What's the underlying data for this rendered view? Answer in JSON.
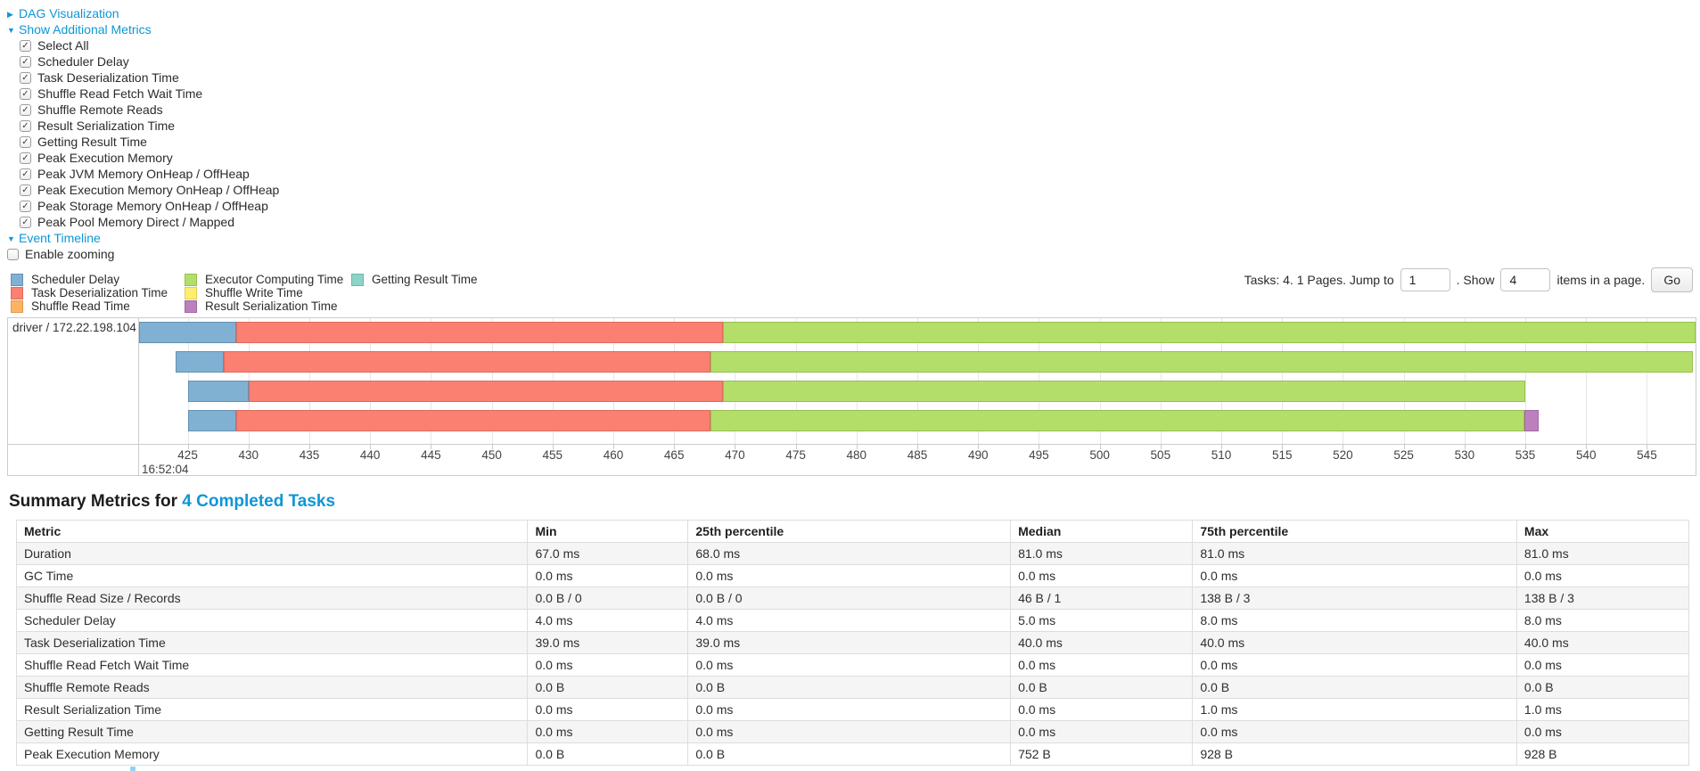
{
  "colors": {
    "link": "#0e96d5"
  },
  "sections": {
    "dag": {
      "label": "DAG Visualization",
      "expanded": false
    },
    "metrics": {
      "label": "Show Additional Metrics",
      "expanded": true
    },
    "timeline": {
      "label": "Event Timeline",
      "expanded": true
    }
  },
  "metric_checkboxes": [
    {
      "label": "Select All",
      "checked": true
    },
    {
      "label": "Scheduler Delay",
      "checked": true
    },
    {
      "label": "Task Deserialization Time",
      "checked": true
    },
    {
      "label": "Shuffle Read Fetch Wait Time",
      "checked": true
    },
    {
      "label": "Shuffle Remote Reads",
      "checked": true
    },
    {
      "label": "Result Serialization Time",
      "checked": true
    },
    {
      "label": "Getting Result Time",
      "checked": true
    },
    {
      "label": "Peak Execution Memory",
      "checked": true
    },
    {
      "label": "Peak JVM Memory OnHeap / OffHeap",
      "checked": true
    },
    {
      "label": "Peak Execution Memory OnHeap / OffHeap",
      "checked": true
    },
    {
      "label": "Peak Storage Memory OnHeap / OffHeap",
      "checked": true
    },
    {
      "label": "Peak Pool Memory Direct / Mapped",
      "checked": true
    }
  ],
  "enable_zooming": {
    "label": "Enable zooming",
    "checked": false
  },
  "pagination": {
    "tasks_text": "Tasks: 4. 1 Pages. Jump to",
    "jump_value": "1",
    "show_text": ". Show",
    "show_value": "4",
    "suffix_text": "items in a page.",
    "go_label": "Go"
  },
  "chart_data": {
    "type": "timeline",
    "group_label": "driver / 172.22.198.104",
    "time_base": "16:52:04",
    "axis": {
      "min_ms": 421,
      "max_ms": 549,
      "ticks_ms": [
        425,
        430,
        435,
        440,
        445,
        450,
        455,
        460,
        465,
        470,
        475,
        480,
        485,
        490,
        495,
        500,
        505,
        510,
        515,
        520,
        525,
        530,
        535,
        540,
        545,
        550
      ]
    },
    "colors": {
      "scheduler": {
        "label": "Scheduler Delay",
        "fill": "#80B1D3",
        "border": "#6590b4"
      },
      "deser": {
        "label": "Task Deserialization Time",
        "fill": "#FB8072",
        "border": "#dd6a5e"
      },
      "shuffle_read": {
        "label": "Shuffle Read Time",
        "fill": "#FDB462",
        "border": "#e09a4b"
      },
      "executor": {
        "label": "Executor Computing Time",
        "fill": "#B3DE69",
        "border": "#96c050"
      },
      "shuffle_write": {
        "label": "Shuffle Write Time",
        "fill": "#FFED6F",
        "border": "#e2d055"
      },
      "result_ser": {
        "label": "Result Serialization Time",
        "fill": "#BC80BD",
        "border": "#a167a2"
      },
      "getting_result": {
        "label": "Getting Result Time",
        "fill": "#8DD3C7",
        "border": "#72b6aa"
      }
    },
    "legend_columns": [
      [
        "scheduler",
        "deser",
        "shuffle_read"
      ],
      [
        "executor",
        "shuffle_write",
        "result_ser"
      ],
      [
        "getting_result"
      ]
    ],
    "tasks": [
      {
        "segments": [
          {
            "name": "scheduler",
            "start": 421,
            "end": 429
          },
          {
            "name": "deser",
            "start": 429,
            "end": 469
          },
          {
            "name": "executor",
            "start": 469,
            "end": 550
          }
        ]
      },
      {
        "segments": [
          {
            "name": "scheduler",
            "start": 424,
            "end": 428
          },
          {
            "name": "deser",
            "start": 428,
            "end": 468
          },
          {
            "name": "executor",
            "start": 468,
            "end": 548.8
          }
        ]
      },
      {
        "segments": [
          {
            "name": "scheduler",
            "start": 425,
            "end": 430
          },
          {
            "name": "deser",
            "start": 430,
            "end": 469
          },
          {
            "name": "executor",
            "start": 469,
            "end": 535
          }
        ]
      },
      {
        "segments": [
          {
            "name": "scheduler",
            "start": 425,
            "end": 429
          },
          {
            "name": "deser",
            "start": 429,
            "end": 468
          },
          {
            "name": "executor",
            "start": 468,
            "end": 534.9
          },
          {
            "name": "result_ser",
            "start": 534.9,
            "end": 536.1
          }
        ]
      }
    ]
  },
  "summary": {
    "heading_prefix": "Summary Metrics for ",
    "heading_link": "4 Completed Tasks",
    "columns": [
      "Metric",
      "Min",
      "25th percentile",
      "Median",
      "75th percentile",
      "Max"
    ],
    "rows": [
      [
        "Duration",
        "67.0 ms",
        "68.0 ms",
        "81.0 ms",
        "81.0 ms",
        "81.0 ms"
      ],
      [
        "GC Time",
        "0.0 ms",
        "0.0 ms",
        "0.0 ms",
        "0.0 ms",
        "0.0 ms"
      ],
      [
        "Shuffle Read Size / Records",
        "0.0 B / 0",
        "0.0 B / 0",
        "46 B / 1",
        "138 B / 3",
        "138 B / 3"
      ],
      [
        "Scheduler Delay",
        "4.0 ms",
        "4.0 ms",
        "5.0 ms",
        "8.0 ms",
        "8.0 ms"
      ],
      [
        "Task Deserialization Time",
        "39.0 ms",
        "39.0 ms",
        "40.0 ms",
        "40.0 ms",
        "40.0 ms"
      ],
      [
        "Shuffle Read Fetch Wait Time",
        "0.0 ms",
        "0.0 ms",
        "0.0 ms",
        "0.0 ms",
        "0.0 ms"
      ],
      [
        "Shuffle Remote Reads",
        "0.0 B",
        "0.0 B",
        "0.0 B",
        "0.0 B",
        "0.0 B"
      ],
      [
        "Result Serialization Time",
        "0.0 ms",
        "0.0 ms",
        "0.0 ms",
        "1.0 ms",
        "1.0 ms"
      ],
      [
        "Getting Result Time",
        "0.0 ms",
        "0.0 ms",
        "0.0 ms",
        "0.0 ms",
        "0.0 ms"
      ],
      [
        "Peak Execution Memory",
        "0.0 B",
        "0.0 B",
        "752 B",
        "928 B",
        "928 B"
      ]
    ]
  }
}
